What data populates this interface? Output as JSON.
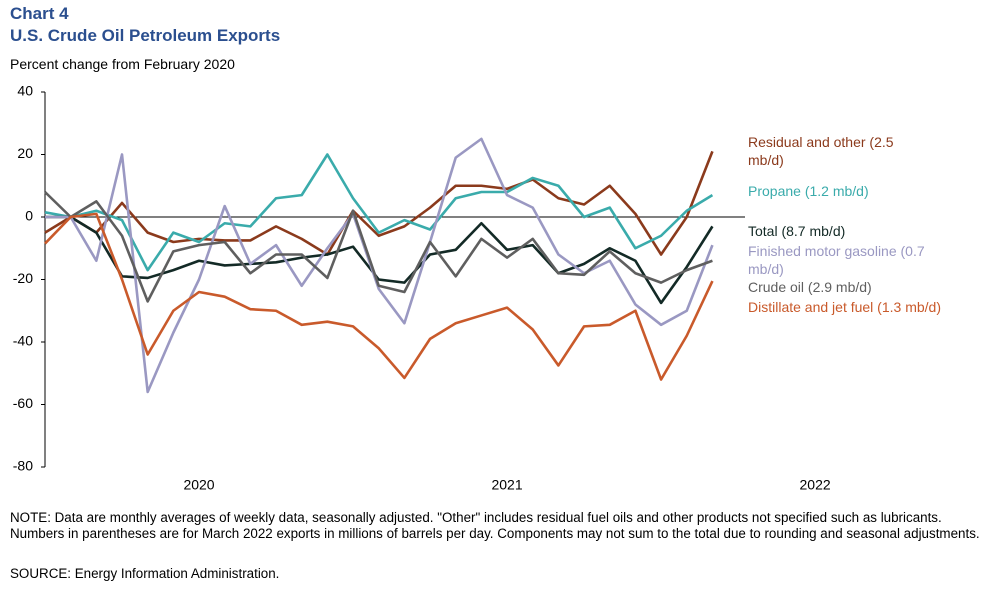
{
  "chart_data": {
    "type": "line",
    "title": "Chart 4",
    "subtitle": "U.S. Crude Oil Petroleum Exports",
    "ylabel": "Percent change from February 2020",
    "x_labels": [
      "2020",
      "2021",
      "2022"
    ],
    "ylim": [
      -80,
      40
    ],
    "yticks": [
      -80,
      -60,
      -40,
      -20,
      0,
      20,
      40
    ],
    "series": [
      {
        "name": "Residual and other (2.5 mb/d)",
        "color": "#8b3a1c",
        "values": [
          -5,
          0,
          -5,
          4.5,
          -5,
          -8,
          -7,
          -7.5,
          -7.5,
          -3,
          -7,
          -12,
          2,
          -6,
          -3,
          3,
          10,
          10,
          9,
          12,
          6,
          4,
          10,
          1,
          -12,
          0,
          21
        ]
      },
      {
        "name": "Propane (1.2 mb/d)",
        "color": "#3aabab",
        "values": [
          1.5,
          0,
          2,
          -1,
          -17,
          -5,
          -8,
          -2,
          -3,
          6,
          7,
          20,
          6,
          -5,
          -1,
          -4,
          6,
          8,
          8,
          12.5,
          10,
          0,
          3,
          -10,
          -6,
          2,
          7
        ]
      },
      {
        "name": "Total (8.7 mb/d)",
        "color": "#132a26",
        "values": [
          0,
          0,
          -5,
          -19,
          -19.5,
          -17,
          -14,
          -15.5,
          -15,
          -14.5,
          -13,
          -12,
          -9.5,
          -20,
          -21,
          -12,
          -10.5,
          -2,
          -10.5,
          -9,
          -18,
          -15,
          -10,
          -14,
          -27.5,
          -16,
          -3
        ]
      },
      {
        "name": "Finished motor gasoline (0.7 mb/d)",
        "color": "#9a98c2",
        "values": [
          0,
          0,
          -14,
          20,
          -56,
          -37,
          -20,
          3.5,
          -15,
          -9,
          -22,
          -10,
          1,
          -23,
          -34,
          -8,
          19,
          25,
          7,
          3,
          -12,
          -18,
          -14,
          -28,
          -34.5,
          -30,
          -9
        ]
      },
      {
        "name": "Crude oil (2.9 mb/d)",
        "color": "#5f5f5f",
        "values": [
          8,
          0,
          5,
          -6,
          -27,
          -11,
          -9,
          -8,
          -18,
          -12,
          -12,
          -19.5,
          2,
          -22,
          -24,
          -8,
          -19,
          -7,
          -13,
          -7,
          -18,
          -18.5,
          -11,
          -18,
          -21,
          -17,
          -14
        ]
      },
      {
        "name": "Distillate and jet fuel (1.3 mb/d)",
        "color": "#c95a2b",
        "values": [
          -8.5,
          0,
          1,
          -20,
          -44,
          -30,
          -24,
          -25.5,
          -29.5,
          -30,
          -34.5,
          -33.5,
          -35,
          -42,
          -51.5,
          -39,
          -34,
          -31.5,
          -29,
          -36,
          -47.5,
          -35,
          -34.5,
          -30,
          -52,
          -38,
          -20.5
        ]
      }
    ],
    "note": "NOTE: Data are monthly averages of weekly data, seasonally adjusted. \"Other\" includes residual fuel oils and other products not specified such as lubricants. Numbers in parentheses are for March 2022 exports in millions of barrels per day. Components may not sum to the total due to rounding and seasonal adjustments.",
    "source": "SOURCE: Energy Information Administration."
  }
}
